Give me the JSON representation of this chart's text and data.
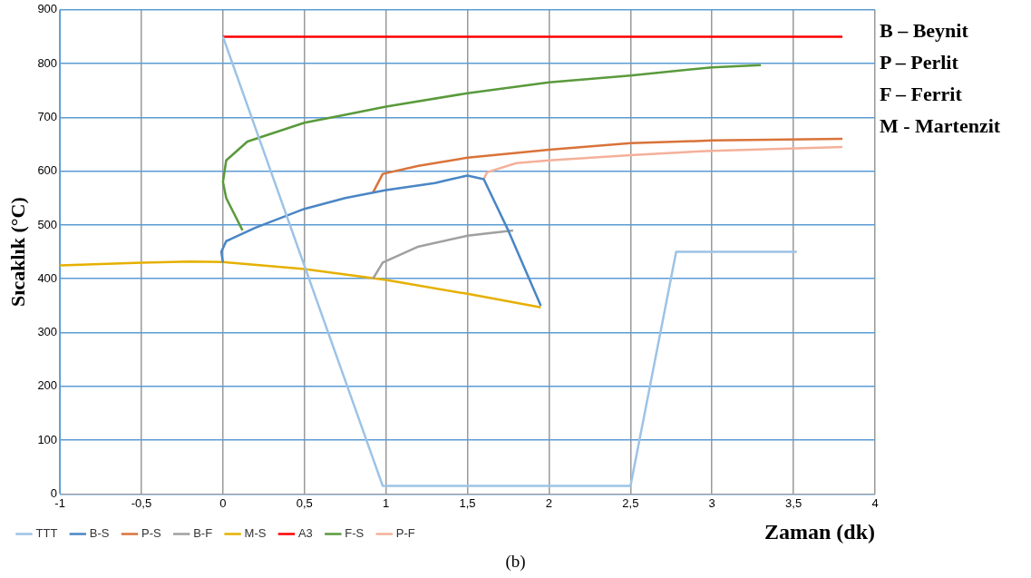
{
  "chart_data": {
    "type": "line",
    "ylabel": "Sıcaklık (°C)",
    "xlabel": "Zaman (dk)",
    "xlim": [
      -1,
      4
    ],
    "xticks": [
      -1,
      {
        "value": -0.5,
        "label": "-0,5"
      },
      0,
      {
        "value": 0.5,
        "label": "0,5"
      },
      1,
      {
        "value": 1.5,
        "label": "1,5"
      },
      2,
      {
        "value": 2.5,
        "label": "2,5"
      },
      3,
      {
        "value": 3.5,
        "label": "3,5"
      },
      4
    ],
    "ylim": [
      0,
      900
    ],
    "yticks": [
      0,
      100,
      200,
      300,
      400,
      500,
      600,
      700,
      800,
      900
    ],
    "grid": true,
    "legend": "bottom",
    "marker": "none",
    "line_style": "solid",
    "series": [
      {
        "name": "TTT",
        "color": "#9dc3e6",
        "x": [
          0,
          0.98,
          2.5,
          2.78,
          3.52
        ],
        "values": [
          850,
          15,
          15,
          450,
          450
        ]
      },
      {
        "name": "B-S",
        "color": "#4a86c5",
        "x": [
          0,
          -0.01,
          0.02,
          0.2,
          0.5,
          0.75,
          1,
          1.3,
          1.4,
          1.5,
          1.6,
          1.75,
          1.95
        ],
        "values": [
          430,
          450,
          470,
          495,
          530,
          550,
          565,
          578,
          585,
          592,
          585,
          490,
          350
        ]
      },
      {
        "name": "P-S",
        "color": "#d9733a",
        "x": [
          0.92,
          0.98,
          1.2,
          1.5,
          2,
          2.5,
          3,
          3.8
        ],
        "values": [
          560,
          595,
          610,
          625,
          640,
          652,
          657,
          660
        ]
      },
      {
        "name": "B-F",
        "color": "#a0a0a0",
        "x": [
          0.92,
          0.98,
          1.2,
          1.5,
          1.78
        ],
        "values": [
          400,
          430,
          460,
          480,
          490
        ]
      },
      {
        "name": "M-S",
        "color": "#e6b000",
        "x": [
          -1,
          -0.5,
          -0.2,
          0,
          0.5,
          1,
          1.5,
          1.95
        ],
        "values": [
          425,
          430,
          432,
          431,
          418,
          398,
          372,
          347
        ]
      },
      {
        "name": "A3",
        "color": "#ff0000",
        "x": [
          0,
          3.8
        ],
        "values": [
          850,
          850
        ]
      },
      {
        "name": "F-S",
        "color": "#5a9a3c",
        "x": [
          0.12,
          0.02,
          0,
          0.02,
          0.15,
          0.5,
          0.75,
          1,
          1.5,
          2,
          2.5,
          3,
          3.3
        ],
        "values": [
          490,
          550,
          580,
          620,
          655,
          690,
          705,
          720,
          745,
          765,
          778,
          793,
          797
        ]
      },
      {
        "name": "P-F",
        "color": "#f4b09a",
        "x": [
          1.6,
          1.62,
          1.8,
          2,
          2.5,
          3,
          3.8
        ],
        "values": [
          585,
          598,
          615,
          620,
          630,
          638,
          645
        ]
      }
    ],
    "annotations": [
      "B – Beynit",
      "P – Perlit",
      "F – Ferrit",
      "M - Martenzit",
      "(b)"
    ]
  }
}
